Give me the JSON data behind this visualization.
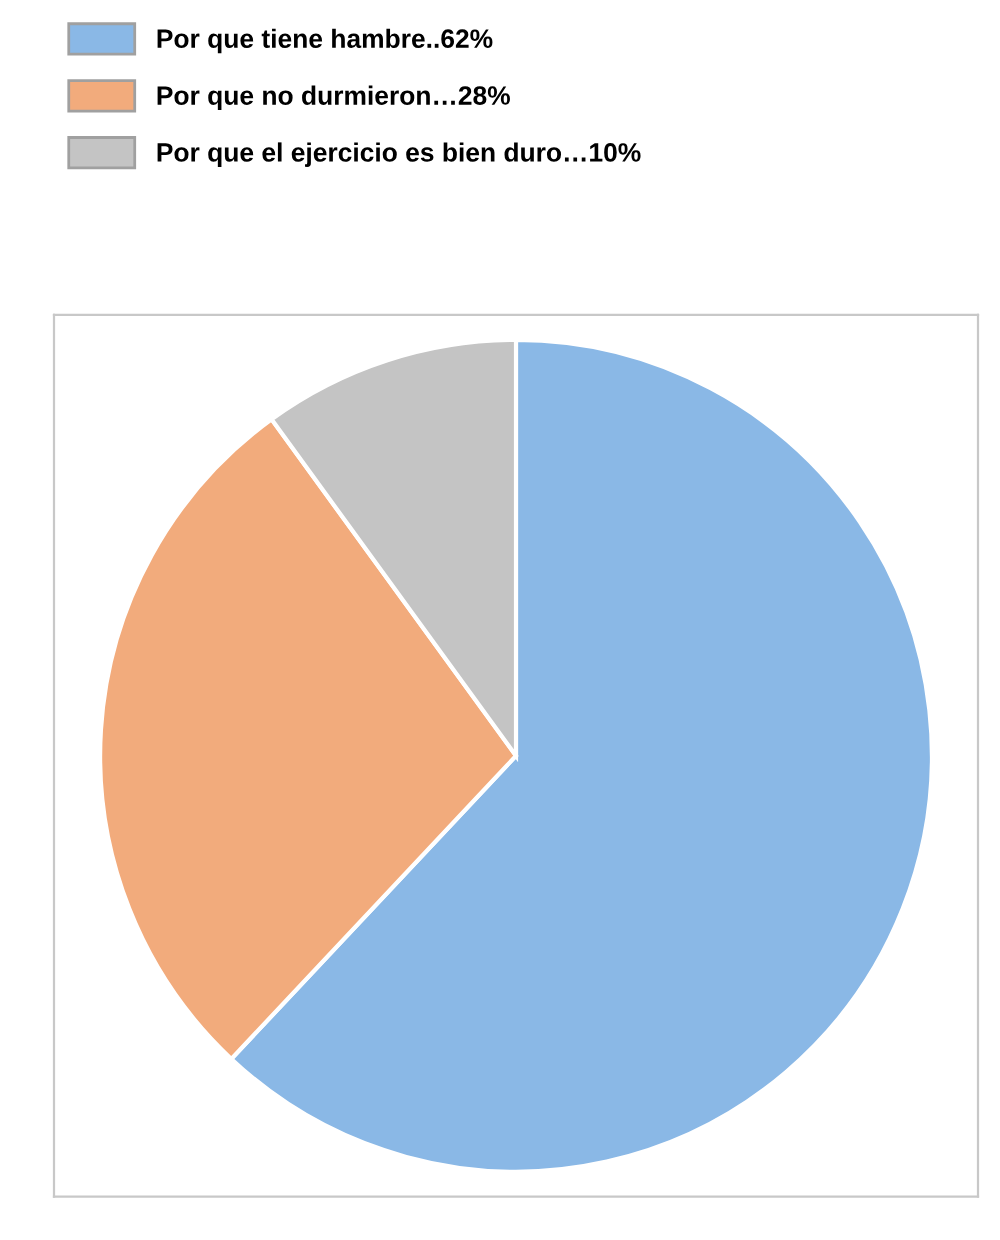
{
  "chart_data": {
    "type": "pie",
    "categories": [
      "Por que tiene hambre..62%",
      "Por que no durmieron…28%",
      "Por que el ejercicio es bien duro…10%"
    ],
    "values": [
      62,
      28,
      10
    ],
    "colors": [
      "#8ab8e6",
      "#f2ab7c",
      "#c4c4c4"
    ],
    "legend": "top left"
  }
}
